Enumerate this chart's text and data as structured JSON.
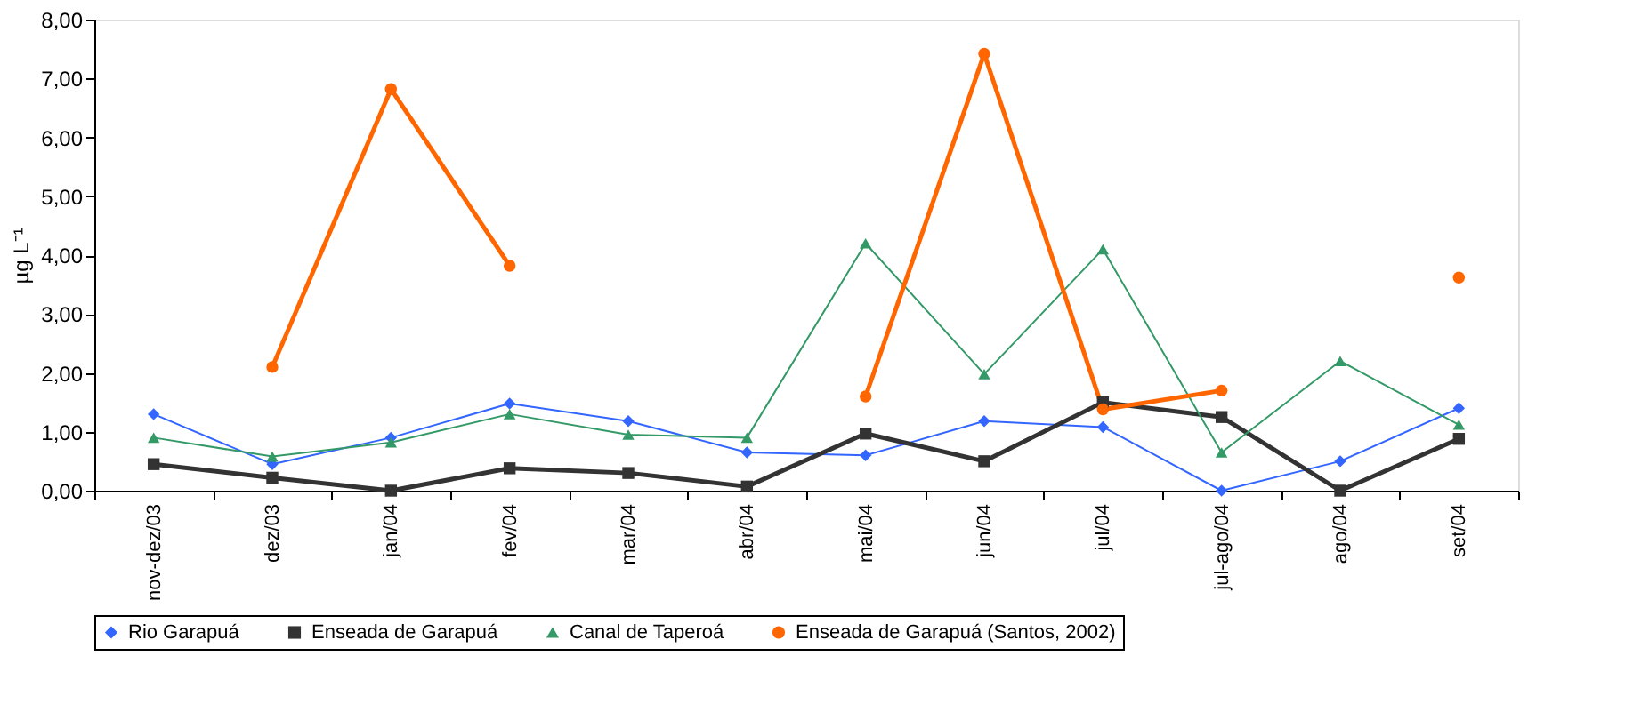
{
  "chart_data": {
    "type": "line",
    "ylabel": "µg L⁻¹",
    "categories": [
      "nov-dez/03",
      "dez/03",
      "jan/04",
      "fev/04",
      "mar/04",
      "abr/04",
      "mai/04",
      "jun/04",
      "jul/04",
      "jul-ago/04",
      "ago/04",
      "set/04"
    ],
    "series": [
      {
        "name": "Rio Garapuá",
        "color": "#3366ff",
        "marker": "diamond",
        "values": [
          1.3,
          0.45,
          0.9,
          1.48,
          1.18,
          0.65,
          0.6,
          1.18,
          1.08,
          0.0,
          0.5,
          1.4
        ]
      },
      {
        "name": "Enseada de Garapuá",
        "color": "#333333",
        "marker": "square",
        "values": [
          0.45,
          0.22,
          0.0,
          0.38,
          0.3,
          0.07,
          0.97,
          0.5,
          1.5,
          1.25,
          0.0,
          0.88
        ]
      },
      {
        "name": "Canal de Taperoá",
        "color": "#339966",
        "marker": "triangle",
        "values": [
          0.9,
          0.58,
          0.82,
          1.3,
          0.95,
          0.9,
          4.2,
          1.98,
          4.1,
          0.65,
          2.2,
          1.12
        ]
      },
      {
        "name": "Enseada de Garapuá (Santos, 2002)",
        "color": "#ff6600",
        "marker": "circle",
        "values": [
          null,
          2.1,
          6.82,
          3.82,
          null,
          null,
          1.6,
          7.42,
          1.38,
          1.7,
          null,
          3.62
        ]
      }
    ],
    "ylim": [
      0,
      8
    ],
    "yticks": [
      {
        "value": 0,
        "label": "0,00"
      },
      {
        "value": 1,
        "label": "1,00"
      },
      {
        "value": 2,
        "label": "2,00"
      },
      {
        "value": 3,
        "label": "3,00"
      },
      {
        "value": 4,
        "label": "4,00"
      },
      {
        "value": 5,
        "label": "5,00"
      },
      {
        "value": 6,
        "label": "6,00"
      },
      {
        "value": 7,
        "label": "7,00"
      },
      {
        "value": 8,
        "label": "8,00"
      }
    ],
    "grid": false,
    "legend": "bottom"
  }
}
